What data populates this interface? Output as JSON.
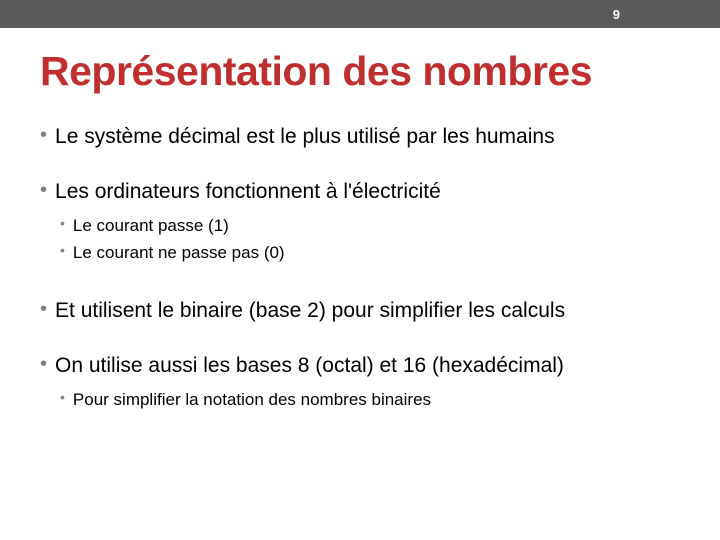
{
  "header": {
    "page_number": "9",
    "background_color": "#595959",
    "text_color": "#ffffff"
  },
  "title": {
    "text": "Représentation des nombres",
    "color": "#c02f2f",
    "fontsize": 41,
    "font_weight": 900
  },
  "bullets": [
    {
      "text": "Le système décimal est le plus utilisé par les humains",
      "subs": []
    },
    {
      "text": "Les ordinateurs fonctionnent à l'électricité",
      "subs": [
        {
          "text": "Le courant passe (1)"
        },
        {
          "text": "Le courant ne passe pas (0)"
        }
      ]
    },
    {
      "text": "Et utilisent le binaire (base 2) pour simplifier les calculs",
      "subs": []
    },
    {
      "text": "On utilise aussi les bases 8 (octal) et 16 (hexadécimal)",
      "subs": [
        {
          "text": "Pour simplifier la notation des nombres binaires"
        }
      ]
    }
  ],
  "styling": {
    "bullet_color": "#808080",
    "bullet_text_color": "#000000",
    "bullet_fontsize": 21,
    "sub_bullet_fontsize": 17,
    "background_color": "#ffffff"
  }
}
